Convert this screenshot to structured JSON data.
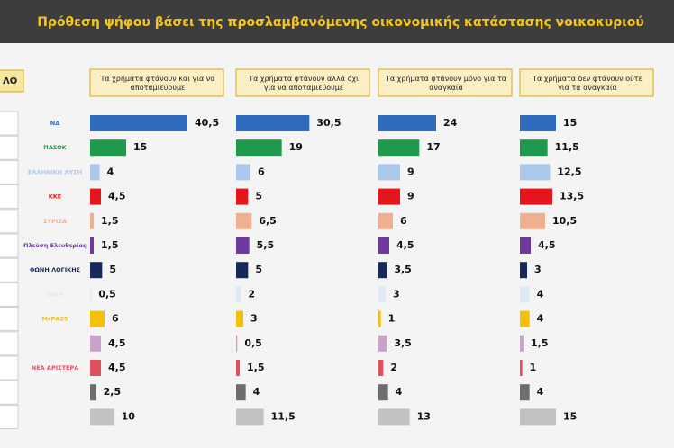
{
  "chart_data": {
    "type": "bar",
    "orientation": "horizontal",
    "title": "Πρόθεση ψήφου βάσει της προσλαμβανόμενης οικονομικής κατάστασης νοικοκυριού",
    "left_header": "ΛΟ",
    "categories": [
      "ΝΔ",
      "ΠΑΣΟΚ",
      "ΕΛΛΗΝΙΚΗ ΛΥΣΗ",
      "ΚΚΕ",
      "ΣΥΡΙΖΑ",
      "Πλεύση Ελευθερίας",
      "ΦΩΝΗ ΛΟΓΙΚΗΣ",
      "ΝΙΚΗ",
      "ΜέΡΑ25",
      null,
      "ΝΕΑ ΑΡΙΣΤΕΡΑ",
      null,
      null
    ],
    "colors": [
      "#2f6cc0",
      "#1f9a4c",
      "#a9c8ec",
      "#e8161c",
      "#efb08f",
      "#6e3aa0",
      "#17285a",
      "#dfe9f5",
      "#f3c10a",
      "#c9a2c9",
      "#e2505e",
      "#6d6d6d",
      "#c2c2c2"
    ],
    "xlim": [
      0,
      45
    ],
    "series": [
      {
        "name": "Τα χρήματα φτάνουν και για να αποταμιεύουμε",
        "values": [
          40.5,
          15,
          4,
          4.5,
          1.5,
          1.5,
          5,
          0.5,
          6,
          4.5,
          4.5,
          2.5,
          10
        ],
        "value_labels": [
          "40,5",
          "15",
          "4",
          "4,5",
          "1,5",
          "1,5",
          "5",
          "0,5",
          "6",
          "4,5",
          "4,5",
          "2,5",
          "10"
        ]
      },
      {
        "name": "Τα χρήματα φτάνουν αλλά όχι για να αποταμιεύουμε",
        "values": [
          30.5,
          19,
          6,
          5,
          6.5,
          5.5,
          5,
          2,
          3,
          0.5,
          1.5,
          4,
          11.5
        ],
        "value_labels": [
          "30,5",
          "19",
          "6",
          "5",
          "6,5",
          "5,5",
          "5",
          "2",
          "3",
          "0,5",
          "1,5",
          "4",
          "11,5"
        ]
      },
      {
        "name": "Τα χρήματα φτάνουν μόνο για τα αναγκαία",
        "values": [
          24,
          17,
          9,
          9,
          6,
          4.5,
          3.5,
          3,
          1,
          3.5,
          2,
          4,
          13
        ],
        "value_labels": [
          "24",
          "17",
          "9",
          "9",
          "6",
          "4,5",
          "3,5",
          "3",
          "1",
          "3,5",
          "2",
          "4",
          "13"
        ]
      },
      {
        "name": "Τα χρήματα δεν φτάνουν ούτε για τα αναγκαία",
        "values": [
          15,
          11.5,
          12.5,
          13.5,
          10.5,
          4.5,
          3,
          4,
          4,
          1.5,
          1,
          4,
          15
        ],
        "value_labels": [
          "15",
          "11,5",
          "12,5",
          "13,5",
          "10,5",
          "4,5",
          "3",
          "4",
          "4",
          "1,5",
          "1",
          "4",
          "15"
        ]
      }
    ]
  }
}
